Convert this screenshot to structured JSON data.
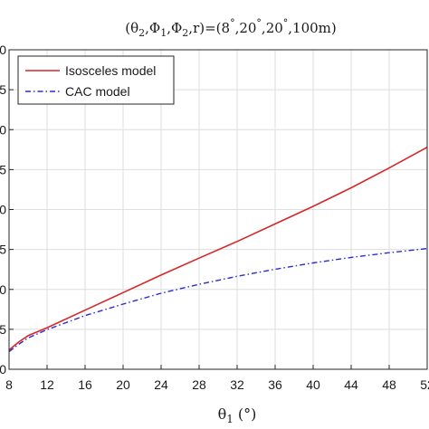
{
  "chart_data": {
    "type": "line",
    "title": "(θ2,Φ1,Φ2,r)=(8°,20°,20°,100m)",
    "title_parts": {
      "open": "(",
      "theta": "θ",
      "sub_2a": "2",
      "sep1": ",",
      "phi1": "Φ",
      "sub_1": "1",
      "sep2": ",",
      "phi2": "Φ",
      "sub_2b": "2",
      "tail": ",r)=(8",
      "deg1": "°",
      "mid1": ",20",
      "deg2": "°",
      "mid2": ",20",
      "deg3": "°",
      "end": ",100m)"
    },
    "xlabel": "θ1 (°)",
    "xlabel_parts": {
      "theta": "θ",
      "sub": "1",
      "unit": " (°)"
    },
    "ylabel": "",
    "xlim": [
      8,
      52
    ],
    "ylim": [
      0,
      1
    ],
    "x_ticks": [
      "8",
      "12",
      "16",
      "20",
      "24",
      "28",
      "32",
      "36",
      "40",
      "44",
      "48",
      "52"
    ],
    "y_ticks": [
      "0",
      "5",
      "0",
      "5",
      "0",
      "5",
      "0",
      "5",
      "0"
    ],
    "grid": true,
    "legend_position": "top-left",
    "series": [
      {
        "name": "Isosceles model",
        "color": "#d62728",
        "style": "solid",
        "x": [
          8,
          9,
          10,
          12,
          16,
          20,
          24,
          28,
          32,
          36,
          40,
          44,
          48,
          52
        ],
        "y": [
          0.06,
          0.085,
          0.105,
          0.13,
          0.185,
          0.24,
          0.295,
          0.348,
          0.4,
          0.455,
          0.51,
          0.568,
          0.63,
          0.695
        ]
      },
      {
        "name": "CAC model",
        "color": "#2b2bd6",
        "style": "dashdot",
        "x": [
          8,
          9,
          10,
          12,
          16,
          20,
          24,
          28,
          32,
          36,
          40,
          44,
          48,
          52
        ],
        "y": [
          0.055,
          0.078,
          0.098,
          0.124,
          0.168,
          0.204,
          0.238,
          0.266,
          0.291,
          0.313,
          0.333,
          0.35,
          0.365,
          0.378
        ]
      }
    ]
  }
}
